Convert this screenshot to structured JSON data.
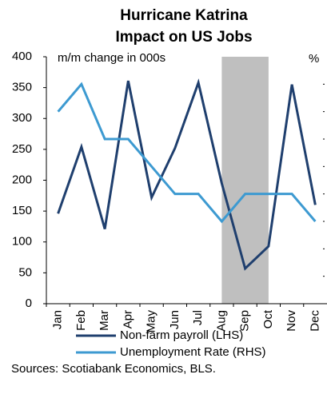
{
  "chart_data": {
    "type": "line",
    "title": [
      "Hurricane Katrina",
      "Impact on US Jobs"
    ],
    "y_label": "m/m change in 000s",
    "y2_label": "%",
    "categories": [
      "Jan",
      "Feb",
      "Mar",
      "Apr",
      "May",
      "Jun",
      "Jul",
      "Aug",
      "Sep",
      "Oct",
      "Nov",
      "Dec"
    ],
    "series": [
      {
        "name": "Non-farm payroll (LHS)",
        "color": "#1f3f6e",
        "values": [
          146,
          254,
          121,
          361,
          172,
          252,
          358,
          195,
          57,
          93,
          355,
          160
        ]
      },
      {
        "name": "Unemployment Rate (RHS)",
        "color": "#3d9ad1",
        "axis": "y2",
        "values": [
          5.3,
          5.4,
          5.2,
          5.2,
          5.1,
          5.0,
          5.0,
          4.9,
          5.0,
          5.0,
          5.0,
          4.9
        ]
      }
    ],
    "ylim": [
      0,
      400
    ],
    "yticks": [
      0,
      50,
      100,
      150,
      200,
      250,
      300,
      350,
      400
    ],
    "y2lim": [
      4.6,
      5.5
    ],
    "y2ticks": [
      4.6,
      4.7,
      4.8,
      4.9,
      5.0,
      5.1,
      5.2,
      5.3,
      5.4,
      5.5
    ],
    "shaded_range": [
      "Aug",
      "Oct"
    ],
    "shade_color": "#bfbfbf",
    "note": "Sources: Scotiabank Economics, BLS."
  }
}
